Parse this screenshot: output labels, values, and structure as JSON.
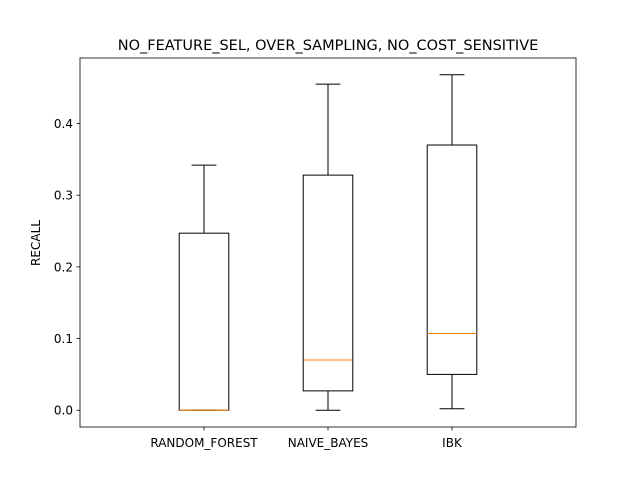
{
  "chart_data": {
    "type": "box",
    "title": "NO_FEATURE_SEL, OVER_SAMPLING, NO_COST_SENSITIVE",
    "xlabel": "",
    "ylabel": "RECALL",
    "categories": [
      "RANDOM_FOREST",
      "NAIVE_BAYES",
      "IBK"
    ],
    "boxes": [
      {
        "whisker_low": 0.0,
        "q1": 0.0,
        "median": 0.0,
        "q3": 0.247,
        "whisker_high": 0.342
      },
      {
        "whisker_low": 0.0,
        "q1": 0.027,
        "median": 0.07,
        "q3": 0.328,
        "whisker_high": 0.455
      },
      {
        "whisker_low": 0.002,
        "q1": 0.05,
        "median": 0.107,
        "q3": 0.37,
        "whisker_high": 0.468
      }
    ],
    "yticks": [
      0.0,
      0.1,
      0.2,
      0.3,
      0.4
    ],
    "ytick_labels": [
      "0.0",
      "0.1",
      "0.2",
      "0.3",
      "0.4"
    ],
    "ylim": [
      -0.0234,
      0.4914
    ],
    "grid": false,
    "colors": {
      "box": "#000000",
      "median": "#ff7f0e",
      "axes": "#000000",
      "background": "#ffffff"
    }
  }
}
